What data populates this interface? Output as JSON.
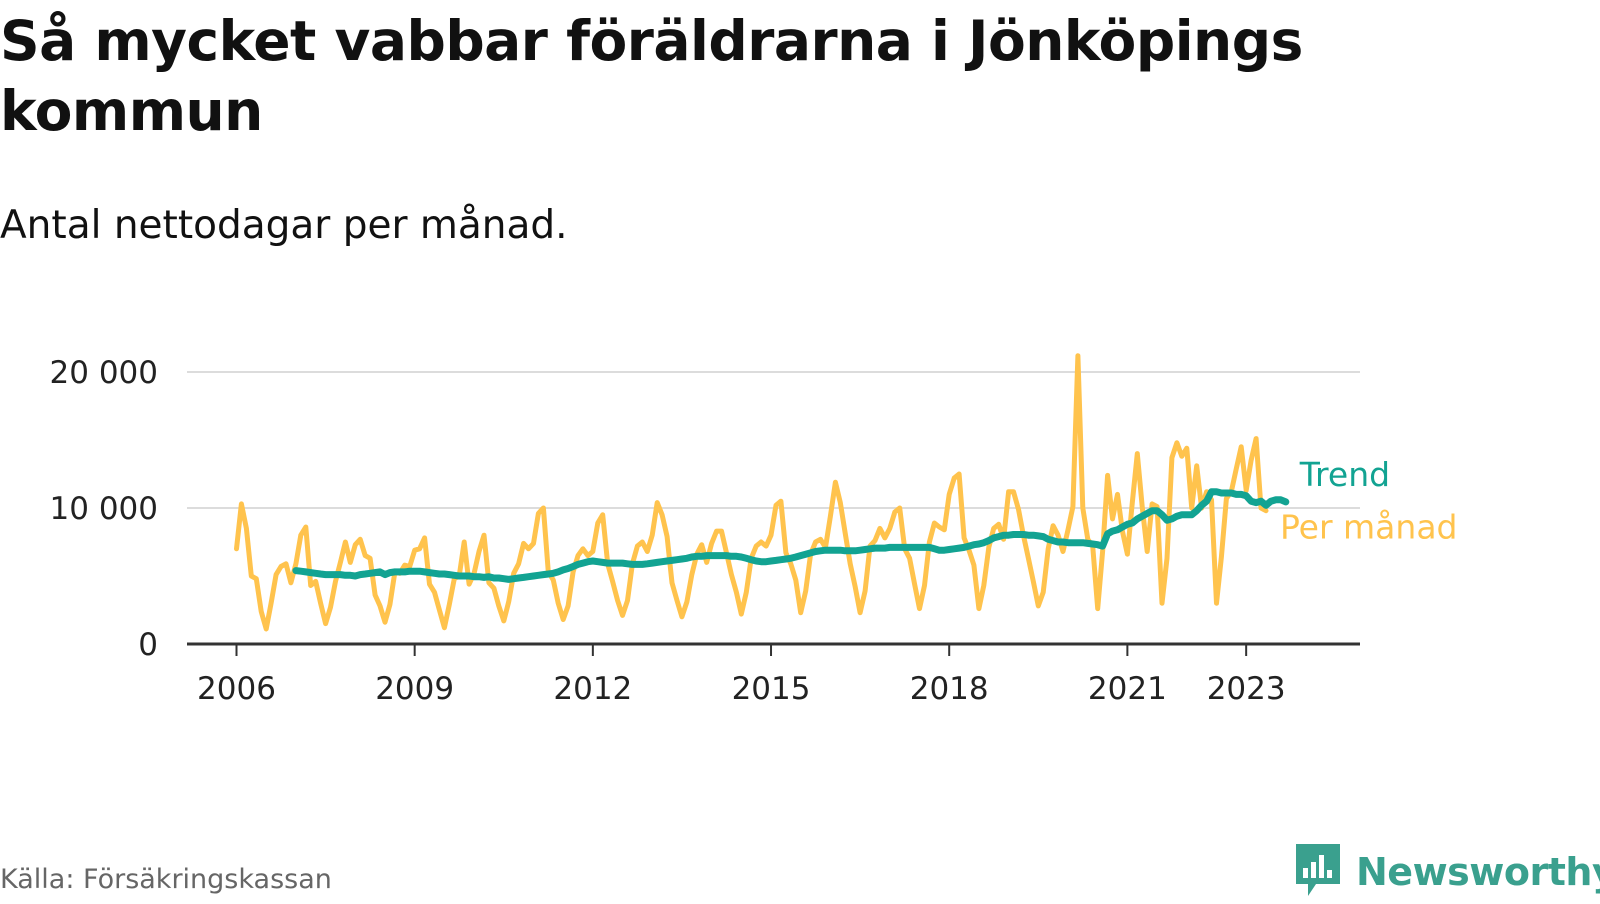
{
  "title": "Så mycket vabbar föräldrarna i Jönköpings kommun",
  "subtitle": "Antal nettodagar per månad.",
  "source": "Källa: Försäkringskassan",
  "brand": "Newsworthy",
  "colors": {
    "per_month": "#ffc34d",
    "trend": "#12a392",
    "grid": "#dcdcdc",
    "axis": "#333333",
    "brand": "#3aa08e",
    "source_text": "#666666"
  },
  "chart_data": {
    "type": "line",
    "title": "Så mycket vabbar föräldrarna i Jönköpings kommun",
    "subtitle": "Antal nettodagar per månad.",
    "xlabel": "",
    "ylabel": "",
    "x_ticks": [
      "2006",
      "2009",
      "2012",
      "2015",
      "2018",
      "2021",
      "2023"
    ],
    "y_ticks": [
      "0",
      "10 000",
      "20 000"
    ],
    "y_tick_values": [
      0,
      10000,
      20000
    ],
    "ylim": [
      0,
      22000
    ],
    "xlim": [
      "2005-03",
      "2024-12"
    ],
    "grid": "horizontal",
    "legend": "inline labels at end of lines",
    "series": [
      {
        "name": "Per månad",
        "start": "2006-01",
        "values": [
          7000,
          10300,
          8500,
          5000,
          4800,
          2400,
          1100,
          3000,
          5100,
          5700,
          5900,
          4500,
          5900,
          8000,
          8600,
          4300,
          4600,
          3000,
          1500,
          2700,
          4600,
          6000,
          7500,
          6000,
          7300,
          7700,
          6500,
          6300,
          3600,
          2800,
          1600,
          2900,
          5300,
          5200,
          5800,
          5700,
          6900,
          7000,
          7800,
          4400,
          3800,
          2500,
          1200,
          2900,
          4800,
          5000,
          7500,
          4400,
          5200,
          6800,
          8000,
          4500,
          4100,
          2800,
          1700,
          3100,
          5200,
          5900,
          7400,
          7000,
          7400,
          9600,
          10000,
          5300,
          4700,
          3000,
          1800,
          2800,
          5300,
          6500,
          7000,
          6500,
          6800,
          8900,
          9500,
          5900,
          4600,
          3200,
          2100,
          3200,
          5900,
          7200,
          7500,
          6800,
          8000,
          10400,
          9500,
          7900,
          4500,
          3200,
          2000,
          3100,
          5100,
          6600,
          7300,
          6000,
          7400,
          8300,
          8300,
          6700,
          5100,
          3800,
          2200,
          3800,
          6300,
          7200,
          7500,
          7200,
          8000,
          10200,
          10500,
          6700,
          5900,
          4700,
          2300,
          3900,
          6600,
          7500,
          7700,
          7100,
          9400,
          11900,
          10400,
          8100,
          5900,
          4200,
          2300,
          3900,
          7200,
          7600,
          8500,
          7800,
          8500,
          9700,
          10000,
          7000,
          6300,
          4400,
          2600,
          4300,
          7500,
          8900,
          8600,
          8400,
          11000,
          12200,
          12500,
          7800,
          6900,
          5800,
          2600,
          4300,
          7100,
          8500,
          8800,
          7700,
          11200,
          11200,
          9900,
          8000,
          6300,
          4600,
          2800,
          3800,
          7000,
          8700,
          8000,
          6800,
          8400,
          10100,
          21200,
          10000,
          7700,
          7200,
          2600,
          6800,
          12400,
          9200,
          11000,
          8300,
          6600,
          10400,
          14000,
          10100,
          6800,
          10300,
          10100,
          3000,
          6300,
          13700,
          14800,
          13800,
          14400,
          10000,
          13100,
          10000,
          11200,
          10600,
          3000,
          6400,
          10700,
          11200,
          12900,
          14500,
          11300,
          13500,
          15100,
          10000,
          9800
        ]
      },
      {
        "name": "Trend",
        "start": "2007-01",
        "values": [
          5400,
          5350,
          5300,
          5250,
          5200,
          5150,
          5100,
          5100,
          5100,
          5100,
          5050,
          5050,
          5000,
          5100,
          5150,
          5200,
          5250,
          5300,
          5100,
          5250,
          5300,
          5300,
          5300,
          5350,
          5350,
          5350,
          5300,
          5250,
          5200,
          5150,
          5150,
          5100,
          5050,
          5000,
          5000,
          5000,
          4950,
          4950,
          4900,
          4950,
          4850,
          4850,
          4800,
          4750,
          4800,
          4850,
          4900,
          4950,
          5000,
          5050,
          5100,
          5150,
          5200,
          5300,
          5450,
          5550,
          5700,
          5850,
          5950,
          6050,
          6100,
          6050,
          6000,
          5950,
          5950,
          5950,
          5950,
          5900,
          5850,
          5850,
          5850,
          5900,
          5950,
          6000,
          6050,
          6100,
          6150,
          6200,
          6250,
          6300,
          6400,
          6450,
          6450,
          6500,
          6500,
          6500,
          6500,
          6500,
          6450,
          6450,
          6400,
          6300,
          6200,
          6100,
          6050,
          6050,
          6100,
          6150,
          6200,
          6250,
          6300,
          6400,
          6500,
          6600,
          6700,
          6800,
          6850,
          6900,
          6900,
          6900,
          6900,
          6850,
          6850,
          6850,
          6900,
          6950,
          7000,
          7050,
          7050,
          7050,
          7100,
          7100,
          7100,
          7100,
          7100,
          7100,
          7100,
          7100,
          7100,
          7000,
          6900,
          6900,
          6950,
          7000,
          7050,
          7100,
          7200,
          7300,
          7350,
          7450,
          7600,
          7800,
          7900,
          8000,
          8000,
          8050,
          8050,
          8050,
          8000,
          8000,
          7950,
          7900,
          7700,
          7600,
          7500,
          7500,
          7450,
          7450,
          7450,
          7450,
          7400,
          7350,
          7300,
          7200,
          8100,
          8300,
          8400,
          8600,
          8800,
          8900,
          9200,
          9400,
          9600,
          9800,
          9800,
          9500,
          9100,
          9200,
          9400,
          9500,
          9500,
          9500,
          9800,
          10200,
          10500,
          11200,
          11200,
          11100,
          11100,
          11100,
          11000,
          11000,
          10900,
          10500,
          10400,
          10500,
          10200,
          10500,
          10600,
          10600,
          10450
        ]
      }
    ]
  }
}
